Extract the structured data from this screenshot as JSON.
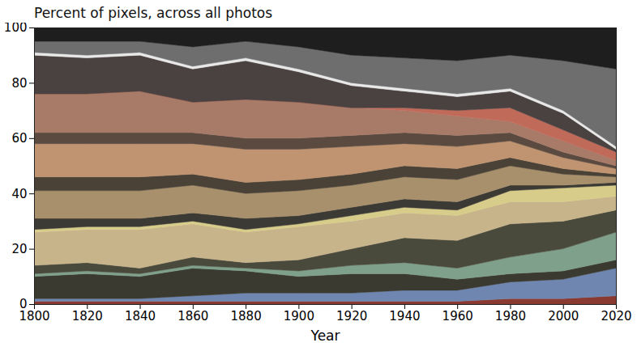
{
  "chart_data": {
    "type": "area",
    "title": "Percent of pixels, across all photos",
    "x_label": "Year",
    "stacked": true,
    "grid": false,
    "x": [
      1800,
      1820,
      1840,
      1860,
      1880,
      1900,
      1920,
      1940,
      1960,
      1980,
      2000,
      2020
    ],
    "xlim": [
      1800,
      2020
    ],
    "xticks": [
      1800,
      1820,
      1840,
      1860,
      1880,
      1900,
      1920,
      1940,
      1960,
      1980,
      2000,
      2020
    ],
    "ylim": [
      0,
      100
    ],
    "yticks": [
      0,
      20,
      40,
      60,
      80,
      100
    ],
    "series": [
      {
        "color": "#8a3a30",
        "values": [
          1,
          1,
          1,
          1,
          1,
          1,
          1,
          1,
          1,
          2,
          2,
          3
        ]
      },
      {
        "color": "#6f86b0",
        "values": [
          1,
          1,
          1,
          2,
          3,
          3,
          3,
          4,
          4,
          6,
          7,
          10
        ]
      },
      {
        "color": "#3a3a30",
        "values": [
          8,
          9,
          8,
          10,
          8,
          6,
          7,
          6,
          4,
          3,
          3,
          3
        ]
      },
      {
        "color": "#7fa08a",
        "values": [
          1,
          1,
          1,
          1,
          1,
          2,
          3,
          4,
          4,
          6,
          8,
          10
        ]
      },
      {
        "color": "#4a4a3c",
        "values": [
          3,
          3,
          2,
          3,
          2,
          4,
          6,
          9,
          10,
          12,
          10,
          8
        ]
      },
      {
        "color": "#c8b48a",
        "values": [
          12,
          12,
          14,
          12,
          11,
          12,
          10,
          9,
          9,
          8,
          7,
          5
        ]
      },
      {
        "color": "#d8cc8a",
        "values": [
          1,
          1,
          1,
          1,
          1,
          1,
          2,
          2,
          2,
          4,
          5,
          4
        ]
      },
      {
        "color": "#3c3a34",
        "values": [
          4,
          3,
          3,
          3,
          4,
          3,
          3,
          3,
          3,
          2,
          1,
          1
        ]
      },
      {
        "color": "#a8906c",
        "values": [
          10,
          10,
          10,
          10,
          9,
          9,
          8,
          8,
          8,
          7,
          4,
          2
        ]
      },
      {
        "color": "#4a4236",
        "values": [
          5,
          5,
          5,
          4,
          4,
          4,
          4,
          4,
          4,
          3,
          2,
          1
        ]
      },
      {
        "color": "#c09470",
        "values": [
          12,
          12,
          12,
          11,
          12,
          11,
          10,
          8,
          8,
          6,
          4,
          2
        ]
      },
      {
        "color": "#5a4a40",
        "values": [
          4,
          4,
          4,
          4,
          4,
          4,
          4,
          4,
          4,
          3,
          2,
          1
        ]
      },
      {
        "color": "#a87a68",
        "values": [
          14,
          14,
          15,
          11,
          14,
          13,
          10,
          8,
          7,
          4,
          4,
          2
        ]
      },
      {
        "color": "#c06a5a",
        "values": [
          0,
          0,
          0,
          0,
          0,
          0,
          0,
          1,
          2,
          5,
          4,
          3
        ]
      },
      {
        "color": "#4a4240",
        "values": [
          14,
          13,
          13,
          12,
          14,
          11,
          8,
          6,
          5,
          6,
          6,
          1
        ]
      },
      {
        "color": "#e8e8e8",
        "values": [
          1,
          1,
          1,
          1,
          1,
          1,
          1,
          1,
          1,
          1,
          1,
          1
        ]
      },
      {
        "color": "#6e6e6e",
        "values": [
          4,
          5,
          4,
          7,
          6,
          8,
          10,
          11,
          12,
          12,
          18,
          28
        ]
      },
      {
        "color": "#1e1e1e",
        "values": [
          5,
          5,
          5,
          7,
          5,
          7,
          10,
          11,
          12,
          10,
          12,
          15
        ]
      }
    ]
  }
}
